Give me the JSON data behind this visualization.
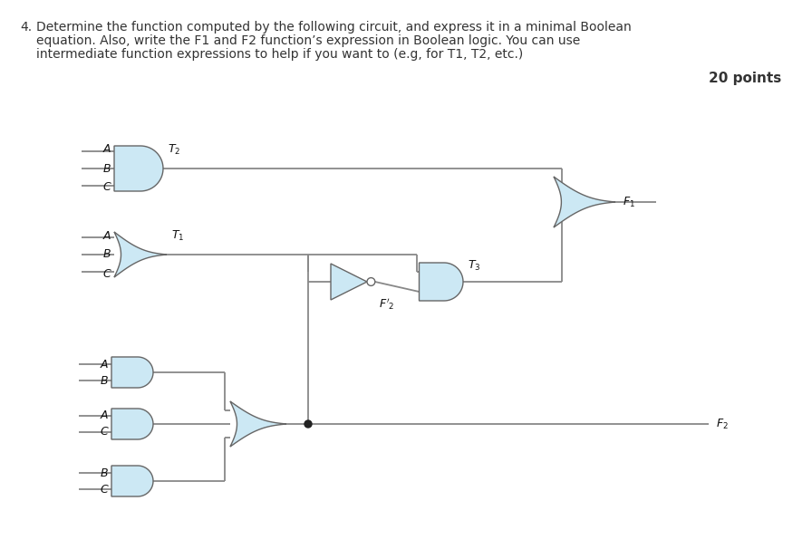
{
  "title_num": "4.",
  "title_text": "Determine the function computed by the following circuit, and express it in a minimal Boolean\nequation. Also, write the F1 and F2 function’s expression in Boolean logic. You can use\nintermediate function expressions to help if you want to (e.g, for T1, T2, etc.)",
  "points_text": "20 points",
  "bg_color": "#ffffff",
  "gate_fill": "#cce8f4",
  "gate_edge": "#666666",
  "wire_color": "#888888",
  "text_color": "#333333",
  "label_color": "#111111"
}
